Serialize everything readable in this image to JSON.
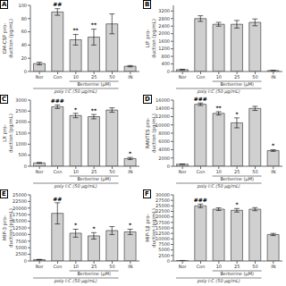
{
  "chart_data": [
    {
      "type": "bar",
      "title": "A",
      "ylabel": "GM-CSF pro-\nduction (pg/mL)",
      "categories": [
        "Nor",
        "Con",
        "10",
        "25",
        "50",
        "IN"
      ],
      "values": [
        12,
        90,
        48,
        52,
        72,
        8
      ],
      "errors": [
        2,
        5,
        8,
        12,
        15,
        1
      ],
      "color": "#d0d0d0",
      "ylim": [
        0,
        100
      ],
      "yticks": [
        0,
        20,
        40,
        60,
        80,
        100
      ],
      "annotations": [
        {
          "text": "##",
          "category": "Con"
        },
        {
          "text": "**",
          "category": "10"
        },
        {
          "text": "**",
          "category": "25"
        }
      ],
      "group_labels": [
        {
          "text": "Berberine (μM)",
          "categories": [
            "10",
            "25",
            "50"
          ]
        },
        {
          "text": "poly I:C (50 μg/mL)",
          "categories": [
            "Nor",
            "Con",
            "10",
            "25",
            "50"
          ]
        }
      ]
    },
    {
      "type": "bar",
      "title": "B",
      "ylabel": "LIF pro-\nduction (pg/mL)",
      "categories": [
        "Nor",
        "Con",
        "10",
        "25",
        "50",
        "IN"
      ],
      "values": [
        100,
        2800,
        2500,
        2500,
        2600,
        50
      ],
      "errors": [
        10,
        150,
        100,
        200,
        180,
        5
      ],
      "color": "#d0d0d0",
      "ylim": [
        0,
        3500
      ],
      "yticks": [
        0,
        400,
        800,
        1200,
        1600,
        2000,
        2400,
        2800,
        3200
      ],
      "annotations": [],
      "group_labels": [
        {
          "text": "Berberine (μM)",
          "categories": [
            "10",
            "25",
            "50"
          ]
        },
        {
          "text": "poly I:C (50 μg/mL)",
          "categories": [
            "Nor",
            "Con",
            "10",
            "25",
            "50"
          ]
        }
      ]
    },
    {
      "type": "bar",
      "title": "C",
      "ylabel": "LX pro-\nduction (pg/mL)",
      "categories": [
        "Nor",
        "Con",
        "10",
        "25",
        "50",
        "IN"
      ],
      "values": [
        150,
        2700,
        2300,
        2250,
        2550,
        350
      ],
      "errors": [
        20,
        80,
        100,
        100,
        100,
        50
      ],
      "color": "#d0d0d0",
      "ylim": [
        0,
        3000
      ],
      "yticks": [
        0,
        500,
        1000,
        1500,
        2000,
        2500,
        3000
      ],
      "annotations": [
        {
          "text": "###",
          "category": "Con"
        },
        {
          "text": "*",
          "category": "10"
        },
        {
          "text": "**",
          "category": "25"
        },
        {
          "text": "*",
          "category": "IN"
        }
      ],
      "group_labels": [
        {
          "text": "Berberine (μM)",
          "categories": [
            "10",
            "25",
            "50"
          ]
        },
        {
          "text": "poly I:C (50 μg/mL)",
          "categories": [
            "Nor",
            "Con",
            "10",
            "25",
            "50"
          ]
        }
      ]
    },
    {
      "type": "bar",
      "title": "D",
      "ylabel": "RANTES pro-\nduction (pg/mL)",
      "categories": [
        "Nor",
        "Con",
        "10",
        "25",
        "50",
        "IN"
      ],
      "values": [
        500,
        15000,
        12800,
        10500,
        14000,
        3800
      ],
      "errors": [
        50,
        300,
        400,
        1200,
        500,
        200
      ],
      "color": "#d0d0d0",
      "ylim": [
        0,
        16000
      ],
      "yticks": [
        0,
        2000,
        4000,
        6000,
        8000,
        10000,
        12000,
        14000,
        16000
      ],
      "annotations": [
        {
          "text": "###",
          "category": "Con"
        },
        {
          "text": "**",
          "category": "10"
        },
        {
          "text": "*",
          "category": "25"
        },
        {
          "text": "*",
          "category": "IN"
        }
      ],
      "group_labels": [
        {
          "text": "Berberine (μM)",
          "categories": [
            "10",
            "25",
            "50"
          ]
        },
        {
          "text": "poly I:C (50 μg/mL)",
          "categories": [
            "Nor",
            "Con",
            "10",
            "25",
            "50"
          ]
        }
      ]
    },
    {
      "type": "bar",
      "title": "E",
      "ylabel": "MIP-3 pro-\nduction (pg/mL)",
      "categories": [
        "Nor",
        "Con",
        "10",
        "25",
        "50",
        "IN"
      ],
      "values": [
        500,
        18000,
        10500,
        9500,
        11500,
        11000
      ],
      "errors": [
        100,
        4000,
        1500,
        1200,
        1500,
        1000
      ],
      "color": "#d0d0d0",
      "ylim": [
        0,
        25000
      ],
      "yticks": [
        0,
        2500,
        5000,
        7500,
        10000,
        12500,
        15000,
        17500,
        20000,
        22500,
        25000
      ],
      "annotations": [
        {
          "text": "##",
          "category": "Con"
        },
        {
          "text": "*",
          "category": "10"
        },
        {
          "text": "*",
          "category": "25"
        },
        {
          "text": "*",
          "category": "IN"
        }
      ],
      "group_labels": [
        {
          "text": "Berberine (μM)",
          "categories": [
            "10",
            "25",
            "50"
          ]
        },
        {
          "text": "poly I:C (50 μg/mL)",
          "categories": [
            "Nor",
            "Con",
            "10",
            "25",
            "50"
          ]
        }
      ]
    },
    {
      "type": "bar",
      "title": "F",
      "ylabel": "MIP-1β pro-\nduction (pg/mL)",
      "categories": [
        "Nor",
        "Con",
        "10",
        "25",
        "50",
        "IN"
      ],
      "values": [
        200,
        25000,
        23500,
        23000,
        23500,
        12000
      ],
      "errors": [
        30,
        800,
        600,
        800,
        700,
        500
      ],
      "color": "#d0d0d0",
      "ylim": [
        0,
        30000
      ],
      "yticks": [
        0,
        2500,
        5000,
        7500,
        10000,
        12500,
        15000,
        17500,
        20000,
        22500,
        25000,
        27500,
        30000
      ],
      "annotations": [
        {
          "text": "###",
          "category": "Con"
        },
        {
          "text": "*",
          "category": "25"
        }
      ],
      "group_labels": [
        {
          "text": "Berberine (μM)",
          "categories": [
            "10",
            "25",
            "50"
          ]
        },
        {
          "text": "poly I:C (50 μg/mL)",
          "categories": [
            "Nor",
            "Con",
            "10",
            "25",
            "50"
          ]
        }
      ]
    }
  ]
}
